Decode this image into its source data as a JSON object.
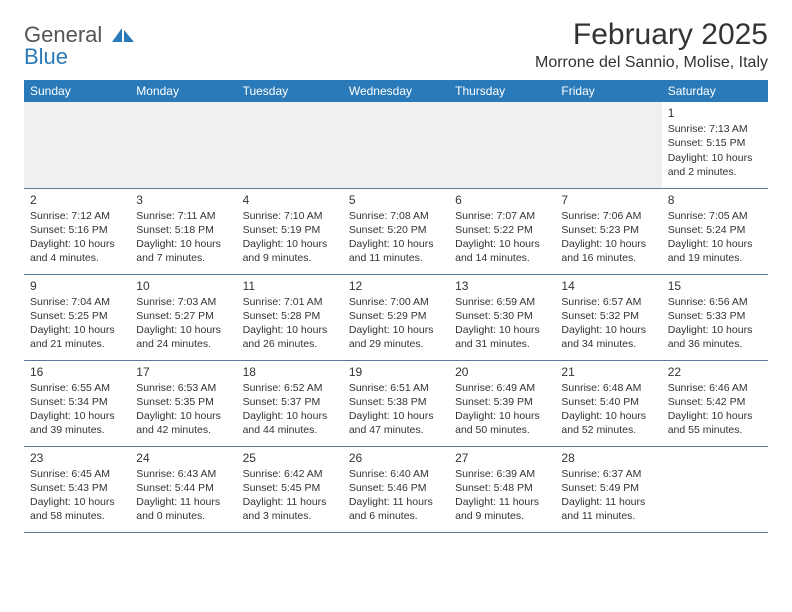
{
  "logo": {
    "line1": "General",
    "line2": "Blue"
  },
  "title": "February 2025",
  "location": "Morrone del Sannio, Molise, Italy",
  "header_bg": "#2a7ab9",
  "header_fg": "#ffffff",
  "rule_color": "#5a7a99",
  "blank_row_bg": "#f0f0f0",
  "day_headers": [
    "Sunday",
    "Monday",
    "Tuesday",
    "Wednesday",
    "Thursday",
    "Friday",
    "Saturday"
  ],
  "weeks": [
    [
      null,
      null,
      null,
      null,
      null,
      null,
      {
        "n": "1",
        "sr": "Sunrise: 7:13 AM",
        "ss": "Sunset: 5:15 PM",
        "dl1": "Daylight: 10 hours",
        "dl2": "and 2 minutes."
      }
    ],
    [
      {
        "n": "2",
        "sr": "Sunrise: 7:12 AM",
        "ss": "Sunset: 5:16 PM",
        "dl1": "Daylight: 10 hours",
        "dl2": "and 4 minutes."
      },
      {
        "n": "3",
        "sr": "Sunrise: 7:11 AM",
        "ss": "Sunset: 5:18 PM",
        "dl1": "Daylight: 10 hours",
        "dl2": "and 7 minutes."
      },
      {
        "n": "4",
        "sr": "Sunrise: 7:10 AM",
        "ss": "Sunset: 5:19 PM",
        "dl1": "Daylight: 10 hours",
        "dl2": "and 9 minutes."
      },
      {
        "n": "5",
        "sr": "Sunrise: 7:08 AM",
        "ss": "Sunset: 5:20 PM",
        "dl1": "Daylight: 10 hours",
        "dl2": "and 11 minutes."
      },
      {
        "n": "6",
        "sr": "Sunrise: 7:07 AM",
        "ss": "Sunset: 5:22 PM",
        "dl1": "Daylight: 10 hours",
        "dl2": "and 14 minutes."
      },
      {
        "n": "7",
        "sr": "Sunrise: 7:06 AM",
        "ss": "Sunset: 5:23 PM",
        "dl1": "Daylight: 10 hours",
        "dl2": "and 16 minutes."
      },
      {
        "n": "8",
        "sr": "Sunrise: 7:05 AM",
        "ss": "Sunset: 5:24 PM",
        "dl1": "Daylight: 10 hours",
        "dl2": "and 19 minutes."
      }
    ],
    [
      {
        "n": "9",
        "sr": "Sunrise: 7:04 AM",
        "ss": "Sunset: 5:25 PM",
        "dl1": "Daylight: 10 hours",
        "dl2": "and 21 minutes."
      },
      {
        "n": "10",
        "sr": "Sunrise: 7:03 AM",
        "ss": "Sunset: 5:27 PM",
        "dl1": "Daylight: 10 hours",
        "dl2": "and 24 minutes."
      },
      {
        "n": "11",
        "sr": "Sunrise: 7:01 AM",
        "ss": "Sunset: 5:28 PM",
        "dl1": "Daylight: 10 hours",
        "dl2": "and 26 minutes."
      },
      {
        "n": "12",
        "sr": "Sunrise: 7:00 AM",
        "ss": "Sunset: 5:29 PM",
        "dl1": "Daylight: 10 hours",
        "dl2": "and 29 minutes."
      },
      {
        "n": "13",
        "sr": "Sunrise: 6:59 AM",
        "ss": "Sunset: 5:30 PM",
        "dl1": "Daylight: 10 hours",
        "dl2": "and 31 minutes."
      },
      {
        "n": "14",
        "sr": "Sunrise: 6:57 AM",
        "ss": "Sunset: 5:32 PM",
        "dl1": "Daylight: 10 hours",
        "dl2": "and 34 minutes."
      },
      {
        "n": "15",
        "sr": "Sunrise: 6:56 AM",
        "ss": "Sunset: 5:33 PM",
        "dl1": "Daylight: 10 hours",
        "dl2": "and 36 minutes."
      }
    ],
    [
      {
        "n": "16",
        "sr": "Sunrise: 6:55 AM",
        "ss": "Sunset: 5:34 PM",
        "dl1": "Daylight: 10 hours",
        "dl2": "and 39 minutes."
      },
      {
        "n": "17",
        "sr": "Sunrise: 6:53 AM",
        "ss": "Sunset: 5:35 PM",
        "dl1": "Daylight: 10 hours",
        "dl2": "and 42 minutes."
      },
      {
        "n": "18",
        "sr": "Sunrise: 6:52 AM",
        "ss": "Sunset: 5:37 PM",
        "dl1": "Daylight: 10 hours",
        "dl2": "and 44 minutes."
      },
      {
        "n": "19",
        "sr": "Sunrise: 6:51 AM",
        "ss": "Sunset: 5:38 PM",
        "dl1": "Daylight: 10 hours",
        "dl2": "and 47 minutes."
      },
      {
        "n": "20",
        "sr": "Sunrise: 6:49 AM",
        "ss": "Sunset: 5:39 PM",
        "dl1": "Daylight: 10 hours",
        "dl2": "and 50 minutes."
      },
      {
        "n": "21",
        "sr": "Sunrise: 6:48 AM",
        "ss": "Sunset: 5:40 PM",
        "dl1": "Daylight: 10 hours",
        "dl2": "and 52 minutes."
      },
      {
        "n": "22",
        "sr": "Sunrise: 6:46 AM",
        "ss": "Sunset: 5:42 PM",
        "dl1": "Daylight: 10 hours",
        "dl2": "and 55 minutes."
      }
    ],
    [
      {
        "n": "23",
        "sr": "Sunrise: 6:45 AM",
        "ss": "Sunset: 5:43 PM",
        "dl1": "Daylight: 10 hours",
        "dl2": "and 58 minutes."
      },
      {
        "n": "24",
        "sr": "Sunrise: 6:43 AM",
        "ss": "Sunset: 5:44 PM",
        "dl1": "Daylight: 11 hours",
        "dl2": "and 0 minutes."
      },
      {
        "n": "25",
        "sr": "Sunrise: 6:42 AM",
        "ss": "Sunset: 5:45 PM",
        "dl1": "Daylight: 11 hours",
        "dl2": "and 3 minutes."
      },
      {
        "n": "26",
        "sr": "Sunrise: 6:40 AM",
        "ss": "Sunset: 5:46 PM",
        "dl1": "Daylight: 11 hours",
        "dl2": "and 6 minutes."
      },
      {
        "n": "27",
        "sr": "Sunrise: 6:39 AM",
        "ss": "Sunset: 5:48 PM",
        "dl1": "Daylight: 11 hours",
        "dl2": "and 9 minutes."
      },
      {
        "n": "28",
        "sr": "Sunrise: 6:37 AM",
        "ss": "Sunset: 5:49 PM",
        "dl1": "Daylight: 11 hours",
        "dl2": "and 11 minutes."
      },
      null
    ]
  ]
}
